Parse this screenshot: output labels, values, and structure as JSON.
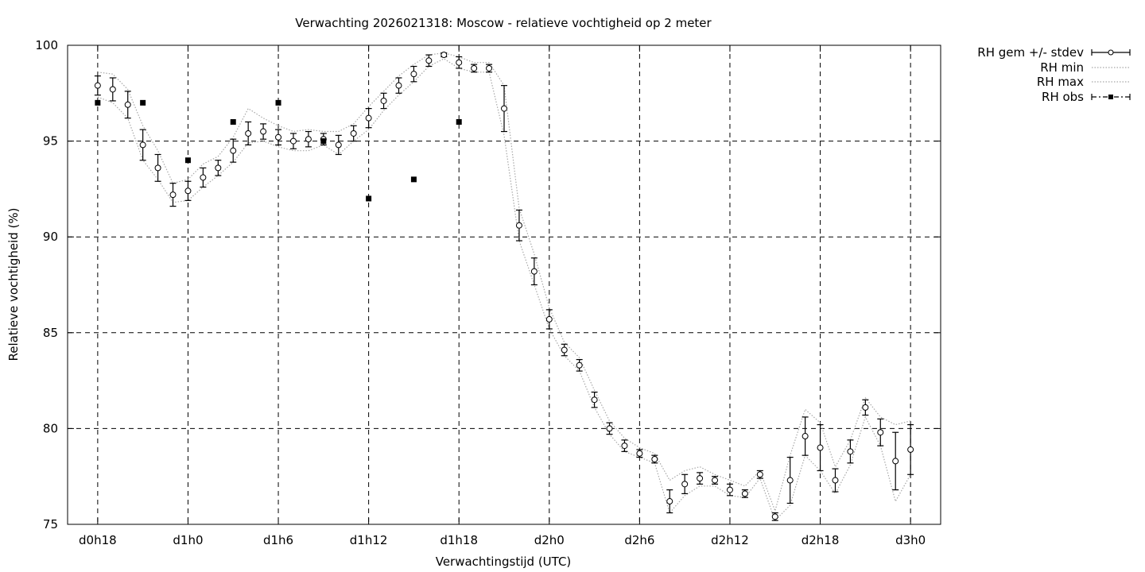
{
  "chart_data": {
    "type": "line",
    "title": "Verwachting 2026021318: Moscow - relatieve vochtigheid op 2 meter",
    "xlabel": "Verwachtingstijd (UTC)",
    "ylabel": "Relatieve vochtigheid (%)",
    "ylim": [
      75,
      100
    ],
    "xlim_hours": [
      -2,
      56
    ],
    "y_ticks": [
      "75",
      "80",
      "85",
      "90",
      "95",
      "100"
    ],
    "x_ticks": [
      {
        "hour": 0,
        "label": "d0h18"
      },
      {
        "hour": 6,
        "label": "d1h0"
      },
      {
        "hour": 12,
        "label": "d1h6"
      },
      {
        "hour": 18,
        "label": "d1h12"
      },
      {
        "hour": 24,
        "label": "d1h18"
      },
      {
        "hour": 30,
        "label": "d2h0"
      },
      {
        "hour": 36,
        "label": "d2h6"
      },
      {
        "hour": 42,
        "label": "d2h12"
      },
      {
        "hour": 48,
        "label": "d2h18"
      },
      {
        "hour": 54,
        "label": "d3h0"
      }
    ],
    "grid": true,
    "legend_position": "right",
    "legend": [
      "RH gem +/- stdev",
      "RH min",
      "RH max",
      "RH obs"
    ],
    "series": [
      {
        "name": "RH gem +/- stdev",
        "x": [
          0,
          1,
          2,
          3,
          4,
          5,
          6,
          7,
          8,
          9,
          10,
          11,
          12,
          13,
          14,
          15,
          16,
          17,
          18,
          19,
          20,
          21,
          22,
          23,
          24,
          25,
          26,
          27,
          28,
          29,
          30,
          31,
          32,
          33,
          34,
          35,
          36,
          37,
          38,
          39,
          40,
          41,
          42,
          43,
          44,
          45,
          46,
          47,
          48,
          49,
          50,
          51,
          52,
          53,
          54
        ],
        "mean": [
          97.9,
          97.7,
          96.9,
          94.8,
          93.6,
          92.2,
          92.4,
          93.1,
          93.6,
          94.5,
          95.4,
          95.5,
          95.2,
          95.0,
          95.1,
          95.1,
          94.8,
          95.4,
          96.2,
          97.1,
          97.9,
          98.5,
          99.2,
          99.5,
          99.1,
          98.8,
          98.8,
          96.7,
          90.6,
          88.2,
          85.7,
          84.1,
          83.3,
          81.5,
          80.0,
          79.1,
          78.7,
          78.4,
          76.2,
          77.1,
          77.4,
          77.3,
          76.8,
          76.6,
          77.6,
          75.4,
          77.3,
          79.6,
          79.0,
          77.3,
          78.8,
          81.1,
          79.8,
          78.3,
          78.9
        ],
        "stdev": [
          0.5,
          0.6,
          0.7,
          0.8,
          0.7,
          0.6,
          0.5,
          0.5,
          0.4,
          0.6,
          0.6,
          0.4,
          0.4,
          0.4,
          0.4,
          0.3,
          0.5,
          0.4,
          0.5,
          0.4,
          0.4,
          0.4,
          0.3,
          0.1,
          0.3,
          0.2,
          0.2,
          1.2,
          0.8,
          0.7,
          0.5,
          0.3,
          0.3,
          0.4,
          0.3,
          0.3,
          0.2,
          0.2,
          0.6,
          0.5,
          0.3,
          0.2,
          0.3,
          0.2,
          0.2,
          0.2,
          1.2,
          1.0,
          1.2,
          0.6,
          0.6,
          0.4,
          0.7,
          1.5,
          1.3
        ]
      },
      {
        "name": "RH min",
        "x": [
          0,
          1,
          2,
          3,
          4,
          5,
          6,
          7,
          8,
          9,
          10,
          11,
          12,
          13,
          14,
          15,
          16,
          17,
          18,
          19,
          20,
          21,
          22,
          23,
          24,
          25,
          26,
          27,
          28,
          29,
          30,
          31,
          32,
          33,
          34,
          35,
          36,
          37,
          38,
          39,
          40,
          41,
          42,
          43,
          44,
          45,
          46,
          47,
          48,
          49,
          50,
          51,
          52,
          53,
          54
        ],
        "values": [
          97.3,
          97.0,
          96.2,
          94.0,
          93.0,
          91.8,
          91.9,
          92.6,
          93.2,
          93.9,
          94.9,
          95.0,
          94.7,
          94.5,
          94.5,
          94.8,
          94.3,
          95.0,
          95.6,
          96.6,
          97.4,
          98.1,
          98.9,
          99.3,
          98.8,
          98.6,
          98.6,
          95.3,
          89.8,
          87.5,
          85.2,
          83.8,
          83.0,
          81.1,
          79.7,
          78.8,
          78.5,
          78.2,
          75.6,
          76.5,
          77.0,
          77.0,
          76.5,
          76.4,
          77.4,
          75.2,
          76.0,
          78.6,
          77.8,
          76.6,
          78.1,
          80.6,
          79.1,
          76.2,
          77.6
        ]
      },
      {
        "name": "RH max",
        "x": [
          0,
          1,
          2,
          3,
          4,
          5,
          6,
          7,
          8,
          9,
          10,
          11,
          12,
          13,
          14,
          15,
          16,
          17,
          18,
          19,
          20,
          21,
          22,
          23,
          24,
          25,
          26,
          27,
          28,
          29,
          30,
          31,
          32,
          33,
          34,
          35,
          36,
          37,
          38,
          39,
          40,
          41,
          42,
          43,
          44,
          45,
          46,
          47,
          48,
          49,
          50,
          51,
          52,
          53,
          54
        ],
        "values": [
          98.6,
          98.5,
          97.7,
          95.8,
          94.5,
          92.8,
          93.0,
          93.8,
          94.2,
          95.2,
          96.7,
          96.2,
          95.8,
          95.5,
          95.6,
          95.5,
          95.5,
          95.9,
          96.8,
          97.6,
          98.4,
          99.0,
          99.5,
          99.6,
          99.4,
          99.1,
          99.1,
          97.9,
          91.5,
          89.1,
          86.3,
          84.5,
          83.7,
          82.0,
          80.4,
          79.5,
          79.0,
          78.7,
          77.3,
          77.8,
          78.0,
          77.6,
          77.3,
          77.0,
          77.8,
          75.7,
          78.6,
          81.0,
          80.3,
          78.0,
          79.4,
          81.6,
          80.6,
          80.2,
          80.4
        ]
      },
      {
        "name": "RH obs",
        "x": [
          0,
          3,
          6,
          9,
          12,
          15,
          18,
          21,
          24
        ],
        "values": [
          97,
          97,
          94,
          96,
          97,
          95,
          92,
          93,
          96
        ]
      }
    ]
  }
}
